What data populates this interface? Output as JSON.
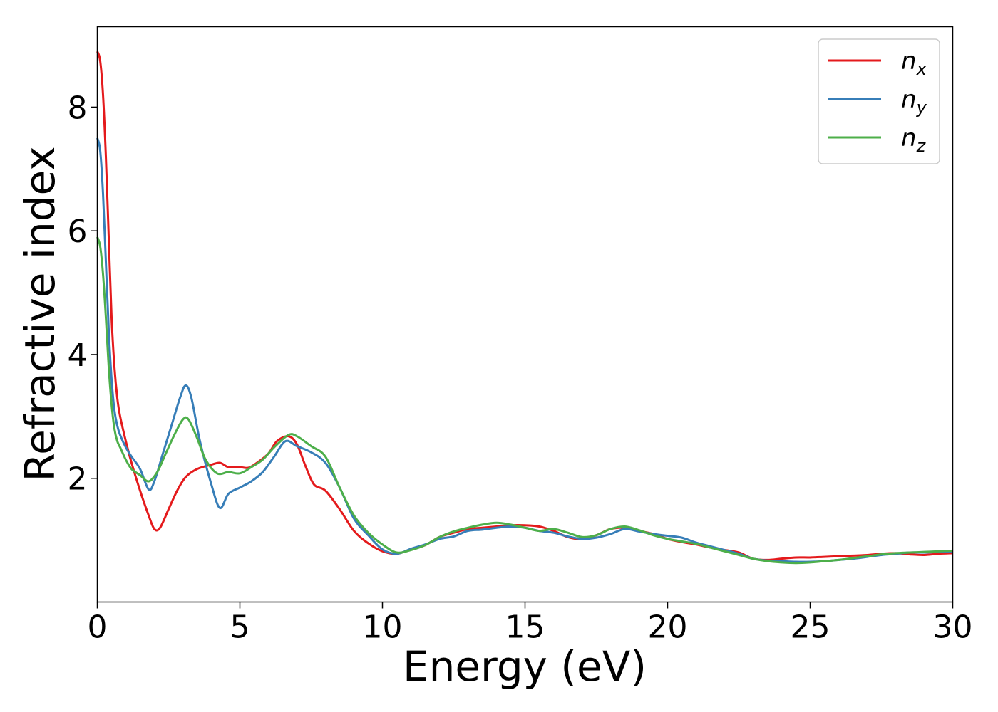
{
  "chart_data": {
    "type": "line",
    "title": "",
    "xlabel": "Energy (eV)",
    "ylabel": "Refractive index",
    "xlim": [
      0,
      30
    ],
    "ylim": [
      0,
      9.3
    ],
    "xticks": [
      0,
      5,
      10,
      15,
      20,
      25,
      30
    ],
    "yticks": [
      2,
      4,
      6,
      8
    ],
    "grid": false,
    "legend_position": "top-right",
    "series": [
      {
        "name": "n",
        "subscript": "x",
        "color": "#e41a1c",
        "x": [
          0,
          0.1,
          0.2,
          0.3,
          0.4,
          0.5,
          0.6,
          0.7,
          0.8,
          1.0,
          1.2,
          1.5,
          1.8,
          2.0,
          2.2,
          2.5,
          2.8,
          3.1,
          3.5,
          4.0,
          4.3,
          4.6,
          5.0,
          5.3,
          5.6,
          6.0,
          6.3,
          6.7,
          7.0,
          7.3,
          7.6,
          8.0,
          8.5,
          9.0,
          9.5,
          10.0,
          10.5,
          11.0,
          11.5,
          12.0,
          12.5,
          13.0,
          13.5,
          14.0,
          14.5,
          15.0,
          15.5,
          16.0,
          16.5,
          17.0,
          17.5,
          18.0,
          18.5,
          19.0,
          19.5,
          20.0,
          20.5,
          21.0,
          21.5,
          22.0,
          22.5,
          23.0,
          23.5,
          24.0,
          24.5,
          25.0,
          25.5,
          26.0,
          26.5,
          27.0,
          27.5,
          28.0,
          28.5,
          29.0,
          29.5,
          30.0
        ],
        "y": [
          8.9,
          8.75,
          8.2,
          7.2,
          5.9,
          4.6,
          3.8,
          3.3,
          3.0,
          2.6,
          2.25,
          1.8,
          1.4,
          1.18,
          1.2,
          1.5,
          1.8,
          2.02,
          2.15,
          2.22,
          2.25,
          2.18,
          2.18,
          2.17,
          2.25,
          2.4,
          2.6,
          2.68,
          2.55,
          2.2,
          1.9,
          1.8,
          1.5,
          1.15,
          0.95,
          0.82,
          0.78,
          0.85,
          0.92,
          1.05,
          1.12,
          1.18,
          1.2,
          1.22,
          1.24,
          1.24,
          1.22,
          1.15,
          1.05,
          1.02,
          1.08,
          1.18,
          1.2,
          1.15,
          1.1,
          1.02,
          0.97,
          0.93,
          0.88,
          0.84,
          0.8,
          0.7,
          0.68,
          0.7,
          0.72,
          0.72,
          0.73,
          0.74,
          0.75,
          0.76,
          0.78,
          0.79,
          0.77,
          0.76,
          0.78,
          0.79
        ]
      },
      {
        "name": "n",
        "subscript": "y",
        "color": "#377eb8",
        "x": [
          0,
          0.1,
          0.2,
          0.3,
          0.4,
          0.5,
          0.6,
          0.7,
          0.8,
          1.0,
          1.2,
          1.5,
          1.8,
          2.0,
          2.3,
          2.6,
          2.9,
          3.1,
          3.3,
          3.6,
          4.0,
          4.3,
          4.6,
          5.0,
          5.4,
          5.8,
          6.2,
          6.6,
          7.0,
          7.5,
          8.0,
          8.5,
          9.0,
          9.5,
          10.0,
          10.5,
          11.0,
          11.5,
          12.0,
          12.5,
          13.0,
          13.5,
          14.0,
          14.5,
          15.0,
          15.5,
          16.0,
          16.5,
          17.0,
          17.5,
          18.0,
          18.5,
          19.0,
          19.5,
          20.0,
          20.5,
          21.0,
          21.5,
          22.0,
          22.5,
          23.0,
          23.5,
          24.0,
          24.5,
          25.0,
          25.5,
          26.0,
          26.5,
          27.0,
          27.5,
          28.0,
          28.5,
          29.0,
          29.5,
          30.0
        ],
        "y": [
          7.5,
          7.3,
          6.6,
          5.5,
          4.4,
          3.6,
          3.1,
          2.85,
          2.7,
          2.5,
          2.35,
          2.15,
          1.82,
          1.95,
          2.4,
          2.85,
          3.3,
          3.5,
          3.3,
          2.6,
          1.9,
          1.52,
          1.75,
          1.85,
          1.95,
          2.1,
          2.35,
          2.6,
          2.52,
          2.42,
          2.25,
          1.85,
          1.35,
          1.08,
          0.85,
          0.78,
          0.86,
          0.93,
          1.02,
          1.06,
          1.15,
          1.17,
          1.2,
          1.22,
          1.2,
          1.15,
          1.12,
          1.06,
          1.02,
          1.04,
          1.1,
          1.18,
          1.14,
          1.1,
          1.07,
          1.04,
          0.96,
          0.9,
          0.84,
          0.78,
          0.7,
          0.67,
          0.66,
          0.65,
          0.65,
          0.66,
          0.68,
          0.7,
          0.73,
          0.76,
          0.78,
          0.8,
          0.8,
          0.81,
          0.82
        ]
      },
      {
        "name": "n",
        "subscript": "z",
        "color": "#4daf4a",
        "x": [
          0,
          0.1,
          0.2,
          0.3,
          0.4,
          0.5,
          0.6,
          0.7,
          0.8,
          1.0,
          1.2,
          1.5,
          1.8,
          2.1,
          2.4,
          2.7,
          3.0,
          3.2,
          3.5,
          3.8,
          4.2,
          4.6,
          5.0,
          5.4,
          5.8,
          6.2,
          6.7,
          7.0,
          7.5,
          8.0,
          8.5,
          9.0,
          9.5,
          10.0,
          10.5,
          11.0,
          11.5,
          12.0,
          12.5,
          13.0,
          13.5,
          14.0,
          14.5,
          15.0,
          15.5,
          16.0,
          16.5,
          17.0,
          17.5,
          18.0,
          18.5,
          19.0,
          19.5,
          20.0,
          20.5,
          21.0,
          21.5,
          22.0,
          22.5,
          23.0,
          23.5,
          24.0,
          24.5,
          25.0,
          25.5,
          26.0,
          26.5,
          27.0,
          27.5,
          28.0,
          28.5,
          29.0,
          29.5,
          30.0
        ],
        "y": [
          5.9,
          5.75,
          5.3,
          4.6,
          3.8,
          3.2,
          2.8,
          2.6,
          2.5,
          2.3,
          2.15,
          2.05,
          1.95,
          2.1,
          2.4,
          2.7,
          2.95,
          2.95,
          2.65,
          2.3,
          2.08,
          2.1,
          2.08,
          2.18,
          2.3,
          2.5,
          2.7,
          2.68,
          2.52,
          2.35,
          1.85,
          1.4,
          1.12,
          0.93,
          0.8,
          0.84,
          0.92,
          1.05,
          1.14,
          1.2,
          1.25,
          1.28,
          1.25,
          1.2,
          1.15,
          1.18,
          1.12,
          1.05,
          1.08,
          1.18,
          1.22,
          1.16,
          1.08,
          1.02,
          0.98,
          0.94,
          0.88,
          0.82,
          0.76,
          0.7,
          0.66,
          0.64,
          0.63,
          0.64,
          0.66,
          0.68,
          0.71,
          0.74,
          0.77,
          0.79,
          0.8,
          0.81,
          0.82,
          0.83
        ]
      }
    ]
  }
}
